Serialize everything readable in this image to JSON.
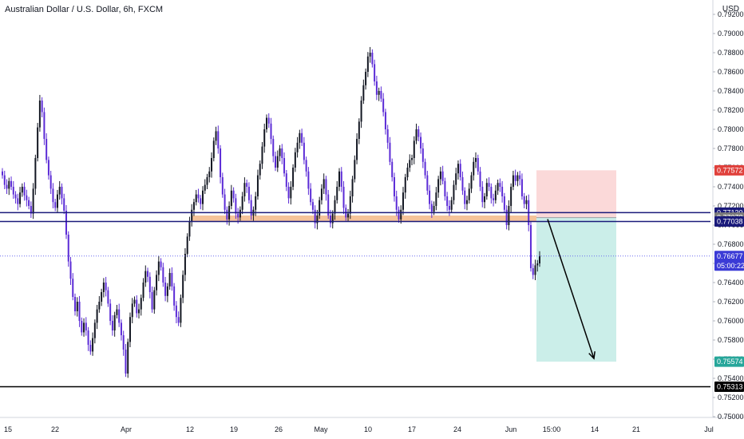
{
  "header": {
    "title": "Australian Dollar / U.S. Dollar, 6h, FXCM",
    "currency": "USD"
  },
  "colors": {
    "up": "#131722",
    "down": "#5b2bd6",
    "resistance_zone": "#f5c39a",
    "stop_zone": "#fbd9d9",
    "target_zone": "#cbeee9",
    "line": "#1a1a7a"
  },
  "chart_data": {
    "type": "candlestick",
    "symbol": "AUDUSD",
    "timeframe": "6h",
    "ylim": [
      0.75,
      0.792
    ],
    "y_ticks": [
      "0.79200",
      "0.79000",
      "0.78800",
      "0.78600",
      "0.78400",
      "0.78200",
      "0.78000",
      "0.77800",
      "0.77600",
      "0.77400",
      "0.77200",
      "0.77000",
      "0.76800",
      "0.76600",
      "0.76400",
      "0.76200",
      "0.76000",
      "0.75800",
      "0.75600",
      "0.75400",
      "0.75200",
      "0.75000"
    ],
    "x_ticks": [
      "15",
      "22",
      "Apr",
      "12",
      "19",
      "26",
      "May",
      "10",
      "17",
      "24",
      "Jun",
      "15:00",
      "14",
      "21",
      "Jul"
    ],
    "price_labels": [
      {
        "label": "0.77572",
        "value": 0.77572,
        "color": "#e0413c"
      },
      {
        "label": "0.77130",
        "value": 0.7713,
        "color": "#1a1a7a"
      },
      {
        "label": "0.77078",
        "value": 0.77078,
        "color": "#7a7a7a"
      },
      {
        "label": "0.77038",
        "value": 0.77038,
        "color": "#1a1a7a"
      },
      {
        "label": "0.76677",
        "value": 0.76677,
        "color": "#3b3bd6"
      },
      {
        "label": "05:00:22",
        "value": 0.76577,
        "color": "#3b3bd6"
      },
      {
        "label": "0.75574",
        "value": 0.75574,
        "color": "#26a69a"
      },
      {
        "label": "0.75313",
        "value": 0.75313,
        "color": "#000000"
      }
    ],
    "levels": {
      "upper_line": 0.7713,
      "lower_line": 0.77038,
      "support_line": 0.75313,
      "current_price": 0.76677,
      "resistance_zone": [
        0.77038,
        0.771
      ],
      "position_entry": 0.77078,
      "position_stop": 0.77572,
      "position_target": 0.75574
    },
    "closes": [
      0.7752,
      0.7742,
      0.7738,
      0.7746,
      0.774,
      0.7732,
      0.7728,
      0.7722,
      0.7734,
      0.774,
      0.7731,
      0.7726,
      0.772,
      0.7712,
      0.7738,
      0.777,
      0.7802,
      0.783,
      0.7818,
      0.779,
      0.7768,
      0.7752,
      0.7738,
      0.7724,
      0.7718,
      0.7732,
      0.774,
      0.7728,
      0.7715,
      0.769,
      0.7662,
      0.7644,
      0.7625,
      0.761,
      0.762,
      0.76,
      0.7588,
      0.7598,
      0.759,
      0.7575,
      0.7568,
      0.7582,
      0.7598,
      0.7612,
      0.762,
      0.763,
      0.764,
      0.7632,
      0.7618,
      0.76,
      0.759,
      0.7606,
      0.7612,
      0.7598,
      0.7585,
      0.757,
      0.7545,
      0.7578,
      0.7604,
      0.7618,
      0.7622,
      0.7608,
      0.7612,
      0.7624,
      0.764,
      0.7652,
      0.7646,
      0.763,
      0.7612,
      0.7632,
      0.7648,
      0.7662,
      0.7656,
      0.764,
      0.7626,
      0.7636,
      0.765,
      0.7636,
      0.7616,
      0.7604,
      0.7598,
      0.7624,
      0.7648,
      0.767,
      0.7688,
      0.7704,
      0.7716,
      0.7724,
      0.7732,
      0.7728,
      0.7722,
      0.7736,
      0.7742,
      0.775,
      0.7756,
      0.777,
      0.7788,
      0.7798,
      0.778,
      0.775,
      0.7732,
      0.7716,
      0.7706,
      0.772,
      0.7736,
      0.7728,
      0.7712,
      0.7708,
      0.7716,
      0.773,
      0.7744,
      0.774,
      0.7726,
      0.771,
      0.7716,
      0.773,
      0.7752,
      0.7764,
      0.7782,
      0.78,
      0.7812,
      0.7806,
      0.779,
      0.7772,
      0.776,
      0.7772,
      0.778,
      0.777,
      0.7754,
      0.774,
      0.7728,
      0.774,
      0.776,
      0.7776,
      0.7786,
      0.7796,
      0.7786,
      0.7768,
      0.7756,
      0.7738,
      0.7724,
      0.7716,
      0.7702,
      0.771,
      0.7726,
      0.7738,
      0.7748,
      0.7732,
      0.771,
      0.7702,
      0.7712,
      0.7726,
      0.774,
      0.7756,
      0.774,
      0.7718,
      0.7708,
      0.7712,
      0.773,
      0.7748,
      0.7768,
      0.779,
      0.7808,
      0.783,
      0.7846,
      0.786,
      0.7876,
      0.788,
      0.7868,
      0.785,
      0.7836,
      0.784,
      0.7832,
      0.7818,
      0.78,
      0.7786,
      0.7766,
      0.775,
      0.773,
      0.7716,
      0.7706,
      0.7716,
      0.7734,
      0.775,
      0.776,
      0.7768,
      0.777,
      0.7788,
      0.78,
      0.7792,
      0.778,
      0.7766,
      0.7752,
      0.7736,
      0.7722,
      0.7714,
      0.772,
      0.7734,
      0.7748,
      0.7756,
      0.7746,
      0.773,
      0.772,
      0.7716,
      0.7726,
      0.7742,
      0.7754,
      0.7764,
      0.775,
      0.7736,
      0.7722,
      0.7726,
      0.7738,
      0.7752,
      0.7766,
      0.777,
      0.7756,
      0.774,
      0.7724,
      0.773,
      0.7744,
      0.774,
      0.7728,
      0.7726,
      0.7736,
      0.7744,
      0.774,
      0.773,
      0.7716,
      0.77,
      0.772,
      0.774,
      0.7752,
      0.7746,
      0.7752,
      0.7748,
      0.773,
      0.7722,
      0.7726,
      0.77,
      0.7655,
      0.7648,
      0.7658,
      0.766,
      0.7668
    ]
  }
}
